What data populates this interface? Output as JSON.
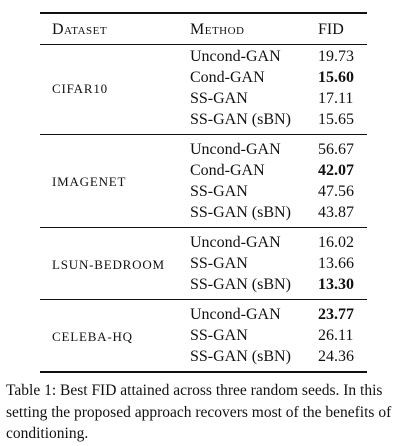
{
  "table": {
    "header": [
      "Dataset",
      "Method",
      "FID"
    ],
    "groups": [
      {
        "dataset": "CIFAR10",
        "rows": [
          {
            "method": "Uncond-GAN",
            "fid": "19.73",
            "bold": false
          },
          {
            "method": "Cond-GAN",
            "fid": "15.60",
            "bold": true
          },
          {
            "method": "SS-GAN",
            "fid": "17.11",
            "bold": false
          },
          {
            "method": "SS-GAN (sBN)",
            "fid": "15.65",
            "bold": false
          }
        ]
      },
      {
        "dataset": "IMAGENET",
        "rows": [
          {
            "method": "Uncond-GAN",
            "fid": "56.67",
            "bold": false
          },
          {
            "method": "Cond-GAN",
            "fid": "42.07",
            "bold": true
          },
          {
            "method": "SS-GAN",
            "fid": "47.56",
            "bold": false
          },
          {
            "method": "SS-GAN (sBN)",
            "fid": "43.87",
            "bold": false
          }
        ]
      },
      {
        "dataset": "LSUN-BEDROOM",
        "rows": [
          {
            "method": "Uncond-GAN",
            "fid": "16.02",
            "bold": false
          },
          {
            "method": "SS-GAN",
            "fid": "13.66",
            "bold": false
          },
          {
            "method": "SS-GAN (sBN)",
            "fid": "13.30",
            "bold": true
          }
        ]
      },
      {
        "dataset": "CELEBA-HQ",
        "rows": [
          {
            "method": "Uncond-GAN",
            "fid": "23.77",
            "bold": true
          },
          {
            "method": "SS-GAN",
            "fid": "26.11",
            "bold": false
          },
          {
            "method": "SS-GAN (sBN)",
            "fid": "24.36",
            "bold": false
          }
        ]
      }
    ],
    "caption": "Table 1: Best FID attained across three random seeds. In this setting the proposed approach recovers most of the benefits of conditioning."
  }
}
